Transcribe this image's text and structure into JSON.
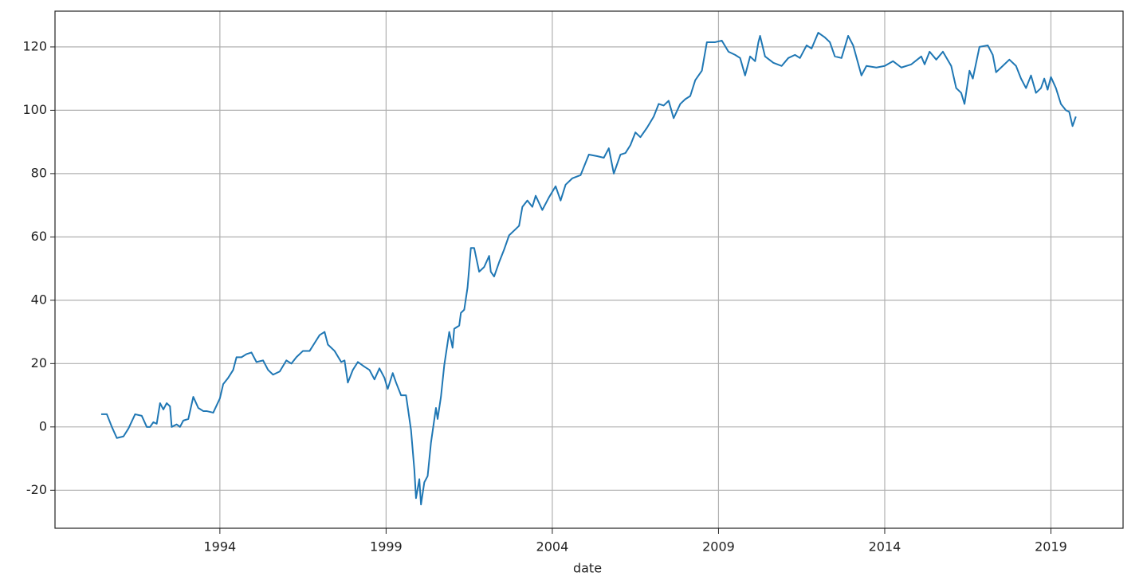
{
  "chart_data": {
    "type": "line",
    "xlabel": "date",
    "color": "#1f77b4",
    "grid": true,
    "xlim": [
      1989.04,
      2021.17
    ],
    "xticks": [
      1994,
      1999,
      2004,
      2009,
      2014,
      2019
    ],
    "ylim": [
      -32,
      131.3
    ],
    "yticks": [
      -20,
      0,
      20,
      40,
      60,
      80,
      100,
      120
    ],
    "x": [
      1990.43,
      1990.6,
      1990.75,
      1990.9,
      1991.1,
      1991.25,
      1991.45,
      1991.65,
      1991.8,
      1991.9,
      1992.0,
      1992.1,
      1992.2,
      1992.3,
      1992.4,
      1992.5,
      1992.55,
      1992.7,
      1992.8,
      1992.9,
      1993.05,
      1993.2,
      1993.35,
      1993.5,
      1993.6,
      1993.8,
      1994.0,
      1994.1,
      1994.25,
      1994.4,
      1994.5,
      1994.65,
      1994.8,
      1994.95,
      1995.1,
      1995.3,
      1995.45,
      1995.6,
      1995.8,
      1996.0,
      1996.15,
      1996.3,
      1996.5,
      1996.7,
      1996.85,
      1997.0,
      1997.15,
      1997.25,
      1997.45,
      1997.65,
      1997.75,
      1997.85,
      1998.0,
      1998.15,
      1998.35,
      1998.5,
      1998.65,
      1998.8,
      1998.95,
      1999.05,
      1999.2,
      1999.3,
      1999.45,
      1999.6,
      1999.75,
      1999.85,
      1999.9,
      2000.0,
      2000.05,
      2000.15,
      2000.25,
      2000.35,
      2000.5,
      2000.55,
      2000.65,
      2000.75,
      2000.9,
      2001.0,
      2001.05,
      2001.2,
      2001.25,
      2001.35,
      2001.45,
      2001.55,
      2001.65,
      2001.8,
      2001.95,
      2002.1,
      2002.15,
      2002.25,
      2002.4,
      2002.55,
      2002.7,
      2002.85,
      2003.0,
      2003.1,
      2003.25,
      2003.4,
      2003.5,
      2003.7,
      2003.9,
      2004.1,
      2004.25,
      2004.4,
      2004.6,
      2004.85,
      2005.1,
      2005.35,
      2005.55,
      2005.7,
      2005.85,
      2006.05,
      2006.2,
      2006.35,
      2006.5,
      2006.65,
      2006.85,
      2007.05,
      2007.2,
      2007.35,
      2007.5,
      2007.65,
      2007.85,
      2008.0,
      2008.15,
      2008.3,
      2008.5,
      2008.65,
      2008.9,
      2009.1,
      2009.3,
      2009.5,
      2009.65,
      2009.8,
      2009.95,
      2010.1,
      2010.2,
      2010.25,
      2010.4,
      2010.65,
      2010.9,
      2011.1,
      2011.3,
      2011.45,
      2011.65,
      2011.8,
      2012.0,
      2012.2,
      2012.35,
      2012.5,
      2012.7,
      2012.9,
      2013.05,
      2013.3,
      2013.45,
      2013.75,
      2014.0,
      2014.25,
      2014.5,
      2014.8,
      2015.1,
      2015.2,
      2015.35,
      2015.55,
      2015.75,
      2016.0,
      2016.15,
      2016.3,
      2016.4,
      2016.55,
      2016.65,
      2016.85,
      2017.1,
      2017.25,
      2017.35,
      2017.55,
      2017.75,
      2017.95,
      2018.1,
      2018.25,
      2018.4,
      2018.55,
      2018.7,
      2018.8,
      2018.9,
      2019.0,
      2019.15,
      2019.3,
      2019.45,
      2019.55,
      2019.65,
      2019.75
    ],
    "values": [
      4,
      4,
      0,
      -3.5,
      -3,
      -0.5,
      4,
      3.5,
      0,
      0,
      1.5,
      1,
      7.5,
      5.5,
      7.5,
      6.5,
      0,
      0.8,
      0,
      2,
      2.5,
      9.5,
      6,
      5,
      5,
      4.5,
      9,
      13.5,
      15.5,
      18,
      22,
      22,
      23,
      23.5,
      20.5,
      21,
      18,
      16.5,
      17.5,
      21,
      20,
      22,
      24,
      24,
      26.5,
      29,
      30,
      26,
      24,
      20.5,
      21,
      14,
      18,
      20.5,
      19,
      18,
      15,
      18.5,
      15.5,
      12,
      17,
      14,
      10,
      10,
      -1,
      -13.5,
      -22.5,
      -16.5,
      -24.5,
      -17.5,
      -15.5,
      -5,
      6,
      2.5,
      9.5,
      19.5,
      30,
      25,
      31,
      32,
      36,
      37,
      44,
      56.5,
      56.5,
      49,
      50.5,
      54,
      49,
      47.5,
      52,
      56,
      60.5,
      62,
      63.5,
      69.5,
      71.5,
      69.5,
      73,
      68.5,
      72.5,
      76,
      71.5,
      76.5,
      78.5,
      79.5,
      86,
      85.5,
      85,
      88,
      80,
      86,
      86.5,
      89,
      93,
      91.5,
      94.5,
      98,
      102,
      101.5,
      103,
      97.5,
      102,
      103.5,
      104.5,
      109.5,
      112.5,
      121.5,
      121.5,
      122,
      118.5,
      117.5,
      116.5,
      111,
      117,
      115.5,
      121.5,
      123.5,
      117,
      115,
      114,
      116.5,
      117.5,
      116.5,
      120.5,
      119.5,
      124.5,
      123,
      121.5,
      117,
      116.5,
      123.5,
      120.5,
      111,
      114,
      113.5,
      114,
      115.5,
      113.5,
      114.5,
      117,
      114.5,
      118.5,
      116,
      118.5,
      114,
      107,
      105.5,
      102,
      112.5,
      110,
      120,
      120.5,
      117.5,
      112,
      114,
      116,
      114,
      110,
      107,
      111,
      105.5,
      107,
      110,
      106.5,
      110.5,
      107,
      102,
      100,
      99.5,
      95,
      98
    ]
  }
}
